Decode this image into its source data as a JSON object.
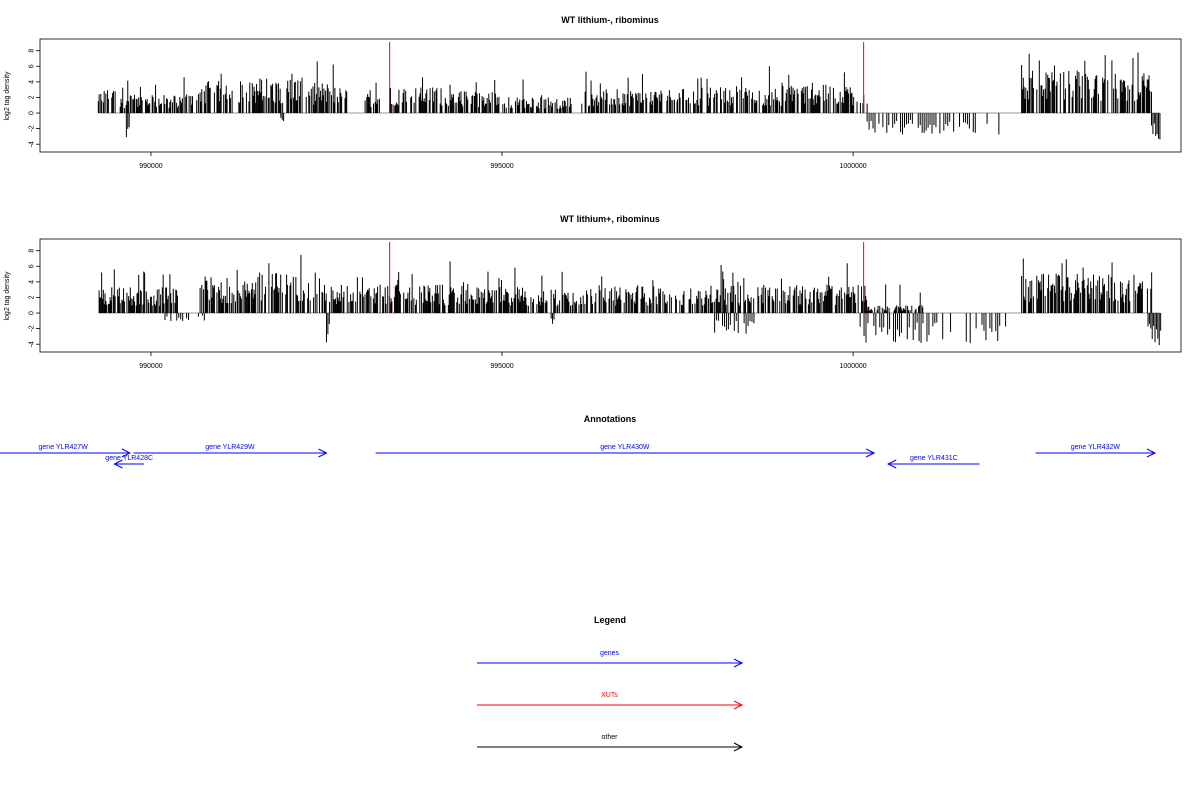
{
  "colors": {
    "genes": "#0000ff",
    "xuts": "#ff0000",
    "other": "#000000",
    "baseline": "#999999"
  },
  "chart_data": [
    {
      "type": "bar",
      "title": "WT lithium-, ribominus",
      "ylabel": "log2 tag density",
      "xlim": [
        988420,
        1004670
      ],
      "ylim": [
        -5,
        9.5
      ],
      "yticks": [
        -4,
        -2,
        0,
        2,
        4,
        6,
        8
      ],
      "xticks": [
        990000,
        995000,
        1000000
      ],
      "xticklabels": [
        "990000",
        "995000",
        "1000000"
      ],
      "xut_markers": [
        993400,
        1000150
      ],
      "signal_segments": [
        {
          "from": 989250,
          "to": 989500,
          "level": 2.4
        },
        {
          "from": 989550,
          "to": 990400,
          "level": 1.8
        },
        {
          "from": 990400,
          "to": 990700,
          "level": 2.0
        },
        {
          "from": 990700,
          "to": 991300,
          "level": 3.2
        },
        {
          "from": 991300,
          "to": 992200,
          "level": 3.5
        },
        {
          "from": 992200,
          "to": 992800,
          "level": 3.0
        },
        {
          "from": 993050,
          "to": 993300,
          "level": 2.0
        },
        {
          "from": 993400,
          "to": 994200,
          "level": 2.6
        },
        {
          "from": 994200,
          "to": 995000,
          "level": 2.2
        },
        {
          "from": 995000,
          "to": 996000,
          "level": 1.6
        },
        {
          "from": 996100,
          "to": 997500,
          "level": 2.4
        },
        {
          "from": 997500,
          "to": 999000,
          "level": 2.6
        },
        {
          "from": 999000,
          "to": 1000200,
          "level": 2.8
        },
        {
          "from": 1002400,
          "to": 1003350,
          "level": 4.2
        },
        {
          "from": 1003350,
          "to": 1004270,
          "level": 4.0
        }
      ],
      "negative_segments": [
        {
          "from": 989650,
          "to": 989700,
          "level": -2.4
        },
        {
          "from": 991850,
          "to": 991900,
          "level": -1.2
        },
        {
          "from": 1000200,
          "to": 1002100,
          "level": -2.2
        },
        {
          "from": 1004250,
          "to": 1004370,
          "level": -2.8
        }
      ]
    },
    {
      "type": "bar",
      "title": "WT lithium+, ribominus",
      "ylabel": "log2 tag density",
      "xlim": [
        988420,
        1004670
      ],
      "ylim": [
        -5,
        9.5
      ],
      "yticks": [
        -4,
        -2,
        0,
        2,
        4,
        6,
        8
      ],
      "xticks": [
        990000,
        995000,
        1000000
      ],
      "xticklabels": [
        "990000",
        "995000",
        "1000000"
      ],
      "xut_markers": [
        993400,
        1000150
      ],
      "signal_segments": [
        {
          "from": 989250,
          "to": 990400,
          "level": 2.6
        },
        {
          "from": 990700,
          "to": 991500,
          "level": 3.6
        },
        {
          "from": 991500,
          "to": 992400,
          "level": 4.0
        },
        {
          "from": 992400,
          "to": 993000,
          "level": 3.0
        },
        {
          "from": 993000,
          "to": 994500,
          "level": 2.8
        },
        {
          "from": 994500,
          "to": 996500,
          "level": 2.6
        },
        {
          "from": 996500,
          "to": 998500,
          "level": 2.7
        },
        {
          "from": 998500,
          "to": 1000200,
          "level": 2.9
        },
        {
          "from": 1000200,
          "to": 1001000,
          "level": 0.8
        },
        {
          "from": 1002400,
          "to": 1003400,
          "level": 4.0
        },
        {
          "from": 1003400,
          "to": 1004270,
          "level": 3.8
        }
      ],
      "negative_segments": [
        {
          "from": 990200,
          "to": 990800,
          "level": -0.8
        },
        {
          "from": 992500,
          "to": 992550,
          "level": -3.0
        },
        {
          "from": 995700,
          "to": 995750,
          "level": -1.4
        },
        {
          "from": 998000,
          "to": 998600,
          "level": -2.2
        },
        {
          "from": 1000100,
          "to": 1002200,
          "level": -3.0
        },
        {
          "from": 1004200,
          "to": 1004380,
          "level": -3.2
        }
      ]
    }
  ],
  "annotations": {
    "title": "Annotations",
    "genes": [
      {
        "label": "gene YLR427W",
        "start": 987800,
        "end": 989700,
        "strand": "+",
        "row": 0
      },
      {
        "label": "gene YLR428C",
        "start": 989900,
        "end": 989480,
        "strand": "-",
        "row": 1
      },
      {
        "label": "gene YLR429W",
        "start": 989750,
        "end": 992500,
        "strand": "+",
        "row": 0
      },
      {
        "label": "gene YLR430W",
        "start": 993200,
        "end": 1000300,
        "strand": "+",
        "row": 0
      },
      {
        "label": "gene YLR431C",
        "start": 1001800,
        "end": 1000500,
        "strand": "-",
        "row": 1
      },
      {
        "label": "gene YLR432W",
        "start": 1002600,
        "end": 1004300,
        "strand": "+",
        "row": 0
      }
    ]
  },
  "legend": {
    "title": "Legend",
    "items": [
      {
        "label": "genes",
        "color": "#0000ff"
      },
      {
        "label": "XUTs",
        "color": "#ff0000"
      },
      {
        "label": "other",
        "color": "#000000"
      }
    ]
  }
}
